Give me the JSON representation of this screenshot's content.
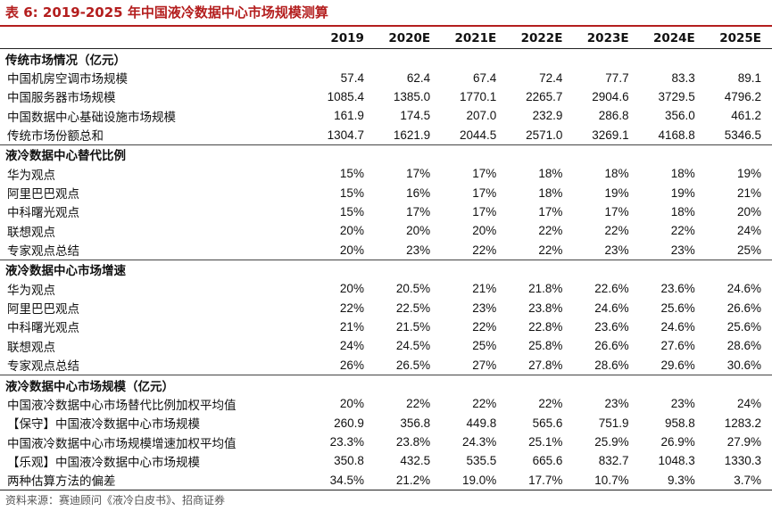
{
  "title": "表 6:  2019-2025 年中国液冷数据中心市场规模测算",
  "columns": [
    "2019",
    "2020E",
    "2021E",
    "2022E",
    "2023E",
    "2024E",
    "2025E"
  ],
  "sections": [
    {
      "heading": "传统市场情况（亿元）",
      "rows": [
        {
          "label": "中国机房空调市场规模",
          "values": [
            "57.4",
            "62.4",
            "67.4",
            "72.4",
            "77.7",
            "83.3",
            "89.1"
          ]
        },
        {
          "label": "中国服务器市场规模",
          "values": [
            "1085.4",
            "1385.0",
            "1770.1",
            "2265.7",
            "2904.6",
            "3729.5",
            "4796.2"
          ]
        },
        {
          "label": "中国数据中心基础设施市场规模",
          "values": [
            "161.9",
            "174.5",
            "207.0",
            "232.9",
            "286.8",
            "356.0",
            "461.2"
          ]
        },
        {
          "label": "传统市场份额总和",
          "values": [
            "1304.7",
            "1621.9",
            "2044.5",
            "2571.0",
            "3269.1",
            "4168.8",
            "5346.5"
          ]
        }
      ]
    },
    {
      "heading": "液冷数据中心替代比例",
      "rows": [
        {
          "label": "华为观点",
          "values": [
            "15%",
            "17%",
            "17%",
            "18%",
            "18%",
            "18%",
            "19%"
          ]
        },
        {
          "label": "阿里巴巴观点",
          "values": [
            "15%",
            "16%",
            "17%",
            "18%",
            "19%",
            "19%",
            "21%"
          ]
        },
        {
          "label": "中科曙光观点",
          "values": [
            "15%",
            "17%",
            "17%",
            "17%",
            "17%",
            "18%",
            "20%"
          ]
        },
        {
          "label": "联想观点",
          "values": [
            "20%",
            "20%",
            "20%",
            "22%",
            "22%",
            "22%",
            "24%"
          ]
        },
        {
          "label": "专家观点总结",
          "values": [
            "20%",
            "23%",
            "22%",
            "22%",
            "23%",
            "23%",
            "25%"
          ]
        }
      ]
    },
    {
      "heading": "液冷数据中心市场增速",
      "rows": [
        {
          "label": "华为观点",
          "values": [
            "20%",
            "20.5%",
            "21%",
            "21.8%",
            "22.6%",
            "23.6%",
            "24.6%"
          ]
        },
        {
          "label": "阿里巴巴观点",
          "values": [
            "22%",
            "22.5%",
            "23%",
            "23.8%",
            "24.6%",
            "25.6%",
            "26.6%"
          ]
        },
        {
          "label": "中科曙光观点",
          "values": [
            "21%",
            "21.5%",
            "22%",
            "22.8%",
            "23.6%",
            "24.6%",
            "25.6%"
          ]
        },
        {
          "label": "联想观点",
          "values": [
            "24%",
            "24.5%",
            "25%",
            "25.8%",
            "26.6%",
            "27.6%",
            "28.6%"
          ]
        },
        {
          "label": "专家观点总结",
          "values": [
            "26%",
            "26.5%",
            "27%",
            "27.8%",
            "28.6%",
            "29.6%",
            "30.6%"
          ]
        }
      ]
    },
    {
      "heading": "液冷数据中心市场规模（亿元）",
      "rows": [
        {
          "label": "中国液冷数据中心市场替代比例加权平均值",
          "values": [
            "20%",
            "22%",
            "22%",
            "22%",
            "23%",
            "23%",
            "24%"
          ]
        },
        {
          "label": "【保守】中国液冷数据中心市场规模",
          "values": [
            "260.9",
            "356.8",
            "449.8",
            "565.6",
            "751.9",
            "958.8",
            "1283.2"
          ]
        },
        {
          "label": "中国液冷数据中心市场规模增速加权平均值",
          "values": [
            "23.3%",
            "23.8%",
            "24.3%",
            "25.1%",
            "25.9%",
            "26.9%",
            "27.9%"
          ]
        },
        {
          "label": "【乐观】中国液冷数据中心市场规模",
          "values": [
            "350.8",
            "432.5",
            "535.5",
            "665.6",
            "832.7",
            "1048.3",
            "1330.3"
          ]
        },
        {
          "label": "两种估算方法的偏差",
          "values": [
            "34.5%",
            "21.2%",
            "19.0%",
            "17.7%",
            "10.7%",
            "9.3%",
            "3.7%"
          ]
        }
      ]
    }
  ],
  "source": "资料来源：赛迪顾问《液冷白皮书》、招商证券"
}
